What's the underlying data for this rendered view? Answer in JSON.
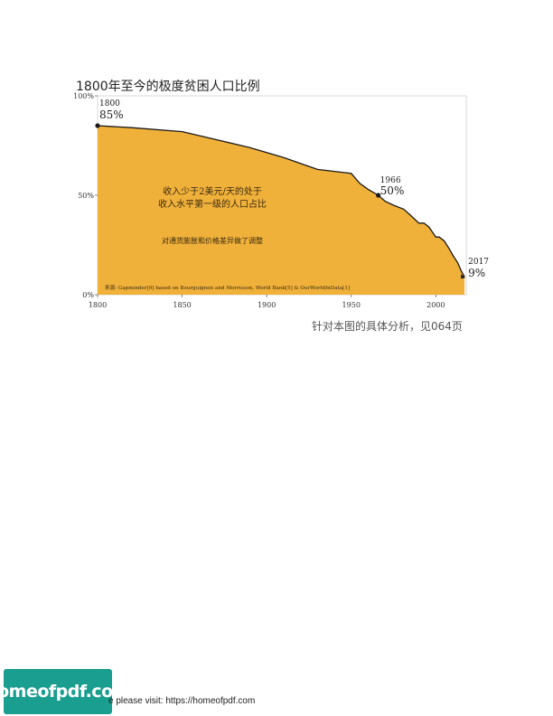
{
  "chart_data": {
    "type": "area",
    "title": "1800年至今的极度贫困人口比例",
    "x": [
      1800,
      1820,
      1850,
      1870,
      1890,
      1910,
      1930,
      1950,
      1955,
      1960,
      1966,
      1970,
      1975,
      1981,
      1985,
      1990,
      1993,
      1996,
      2000,
      2002,
      2005,
      2008,
      2010,
      2013,
      2015,
      2017
    ],
    "values": [
      85,
      84,
      82,
      78,
      74,
      69,
      63,
      61,
      56,
      53,
      50,
      47,
      45,
      43,
      40,
      36,
      36,
      34,
      29,
      29,
      27,
      23,
      20,
      16,
      12,
      9
    ],
    "xlim": [
      1800,
      2018
    ],
    "ylim": [
      0,
      100
    ],
    "x_ticks": [
      "1800",
      "1850",
      "1900",
      "1950",
      "2000"
    ],
    "y_ticks": [
      "0%",
      "50%",
      "100%"
    ],
    "fill_color": "#f0b13b",
    "annotations": [
      {
        "year": "1800",
        "value": "85%"
      },
      {
        "year": "1966",
        "value": "50%"
      },
      {
        "year": "2017",
        "value": "9%"
      }
    ],
    "inner_text": {
      "line1": "收入少于2美元/天的处于",
      "line2": "收入水平第一级的人口占比",
      "note": "对通货膨胀和价格差异做了调整"
    },
    "source": "来源: Gapminder[9] based on Bourguignon and Morrisson, World Bank[5] & OurWorldInData[1]"
  },
  "caption": "针对本图的具体分析，见064页",
  "footer": {
    "badge": "homeofpdf.com",
    "text": "e please visit: https://homeofpdf.com"
  }
}
